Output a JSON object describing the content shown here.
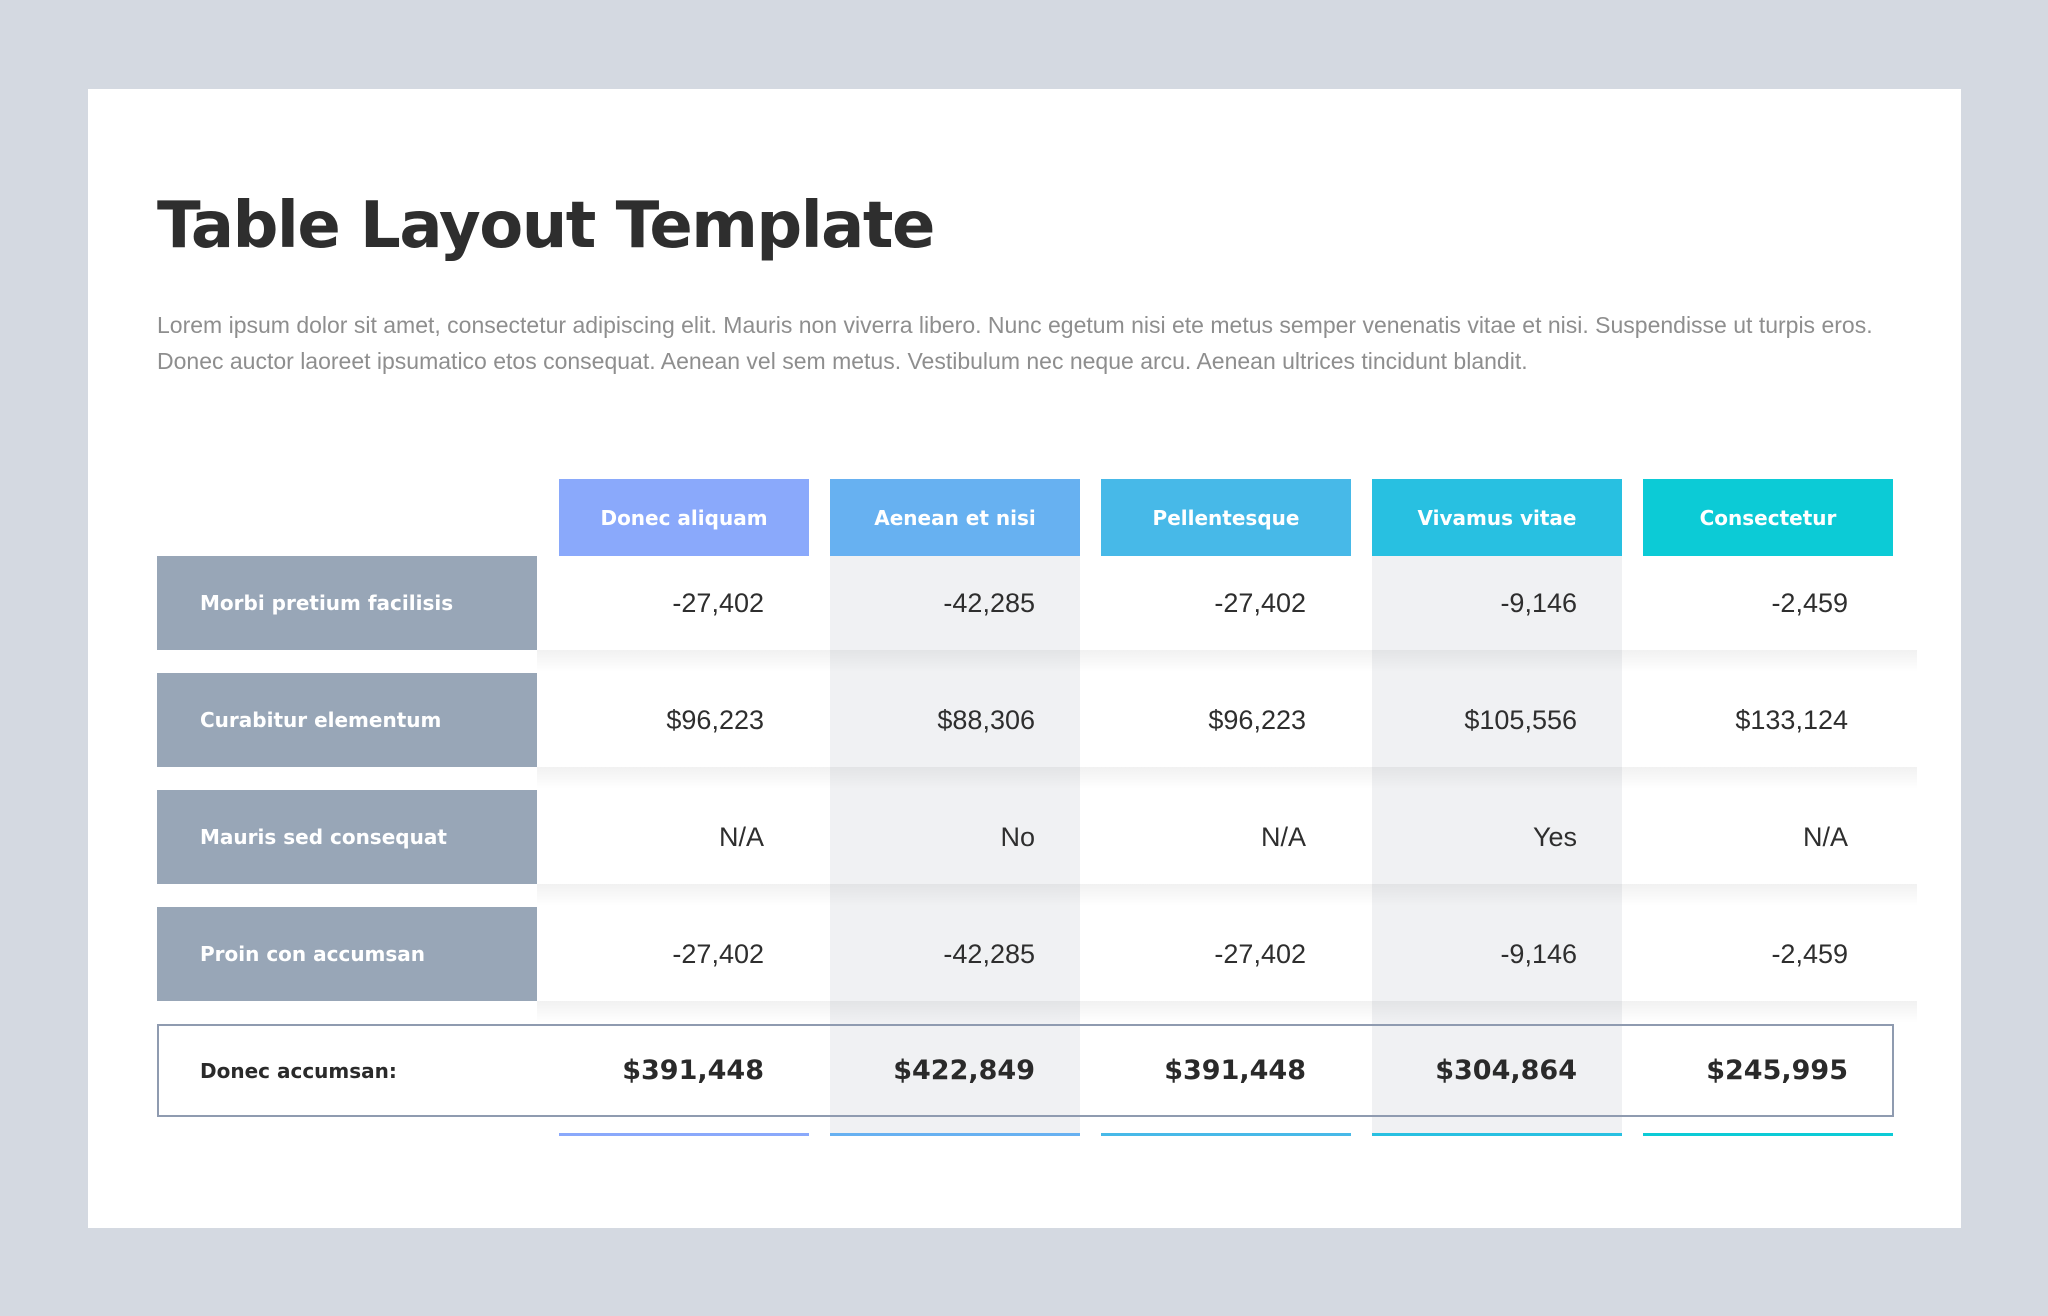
{
  "page": {
    "title": "Table Layout Template",
    "description": "Lorem ipsum dolor sit amet, consectetur adipiscing elit. Mauris non viverra libero. Nunc egetum nisi ete metus semper venenatis vitae et nisi. Suspendisse ut turpis eros. Donec auctor laoreet ipsumatico etos consequat. Aenean vel sem metus. Vestibulum nec neque arcu. Aenean ultrices tincidunt blandit."
  },
  "table": {
    "columns": [
      {
        "label": "Donec aliquam",
        "color": "#8aa9fb"
      },
      {
        "label": "Aenean et nisi",
        "color": "#67b1f1"
      },
      {
        "label": "Pellentesque",
        "color": "#47b9e8"
      },
      {
        "label": "Vivamus vitae",
        "color": "#28c0e1"
      },
      {
        "label": "Consectetur",
        "color": "#0ccbd6"
      }
    ],
    "rows": [
      {
        "label": "Morbi pretium facilisis",
        "values": [
          "-27,402",
          "-42,285",
          "-27,402",
          "-9,146",
          "-2,459"
        ]
      },
      {
        "label": "Curabitur elementum",
        "values": [
          "$96,223",
          "$88,306",
          "$96,223",
          "$105,556",
          "$133,124"
        ]
      },
      {
        "label": "Mauris sed consequat",
        "values": [
          "N/A",
          "No",
          "N/A",
          "Yes",
          "N/A"
        ]
      },
      {
        "label": "Proin con accumsan",
        "values": [
          "-27,402",
          "-42,285",
          "-27,402",
          "-9,146",
          "-2,459"
        ]
      }
    ],
    "total": {
      "label": "Donec accumsan:",
      "values": [
        "$391,448",
        "$422,849",
        "$391,448",
        "$304,864",
        "$245,995"
      ]
    }
  }
}
